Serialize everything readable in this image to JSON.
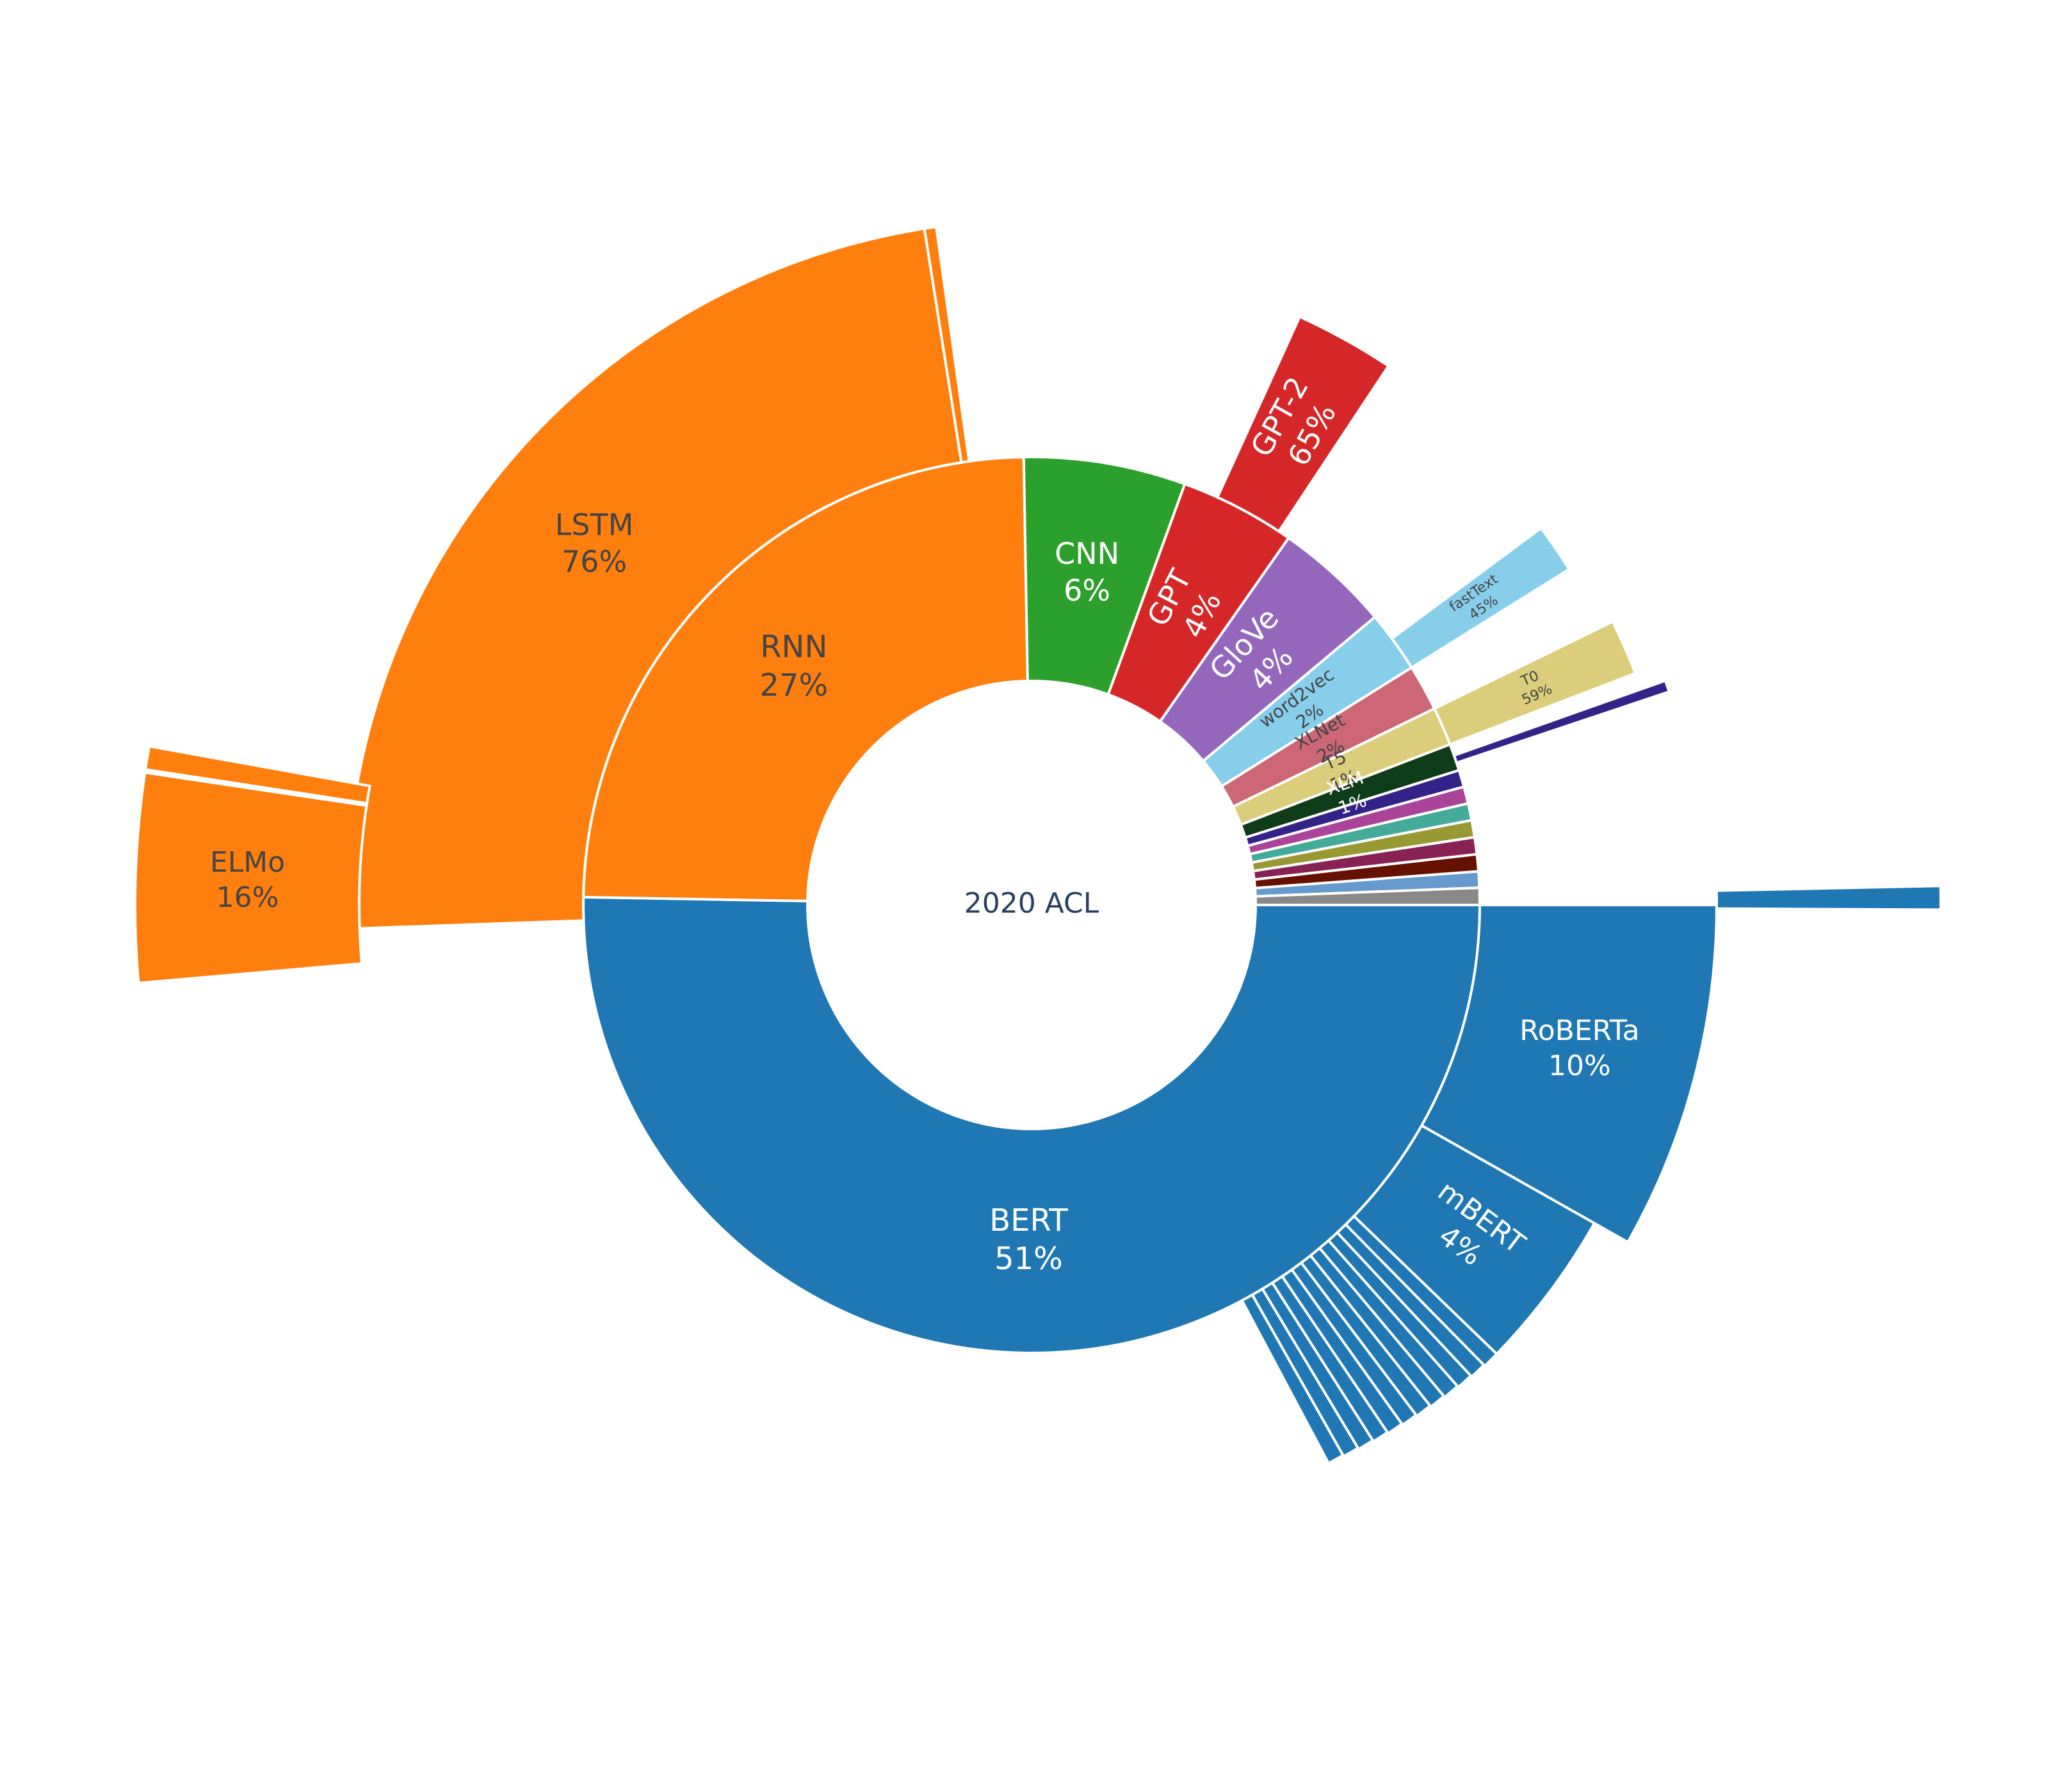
{
  "chart_data": {
    "type": "sunburst",
    "center_label": "2020 ACL",
    "rings": [
      {
        "ring": 1,
        "segments": [
          {
            "label": "BERT",
            "percent": "51%",
            "value": 51,
            "color": "#1f77b4",
            "text_color": "#ffffff",
            "show_label": true
          },
          {
            "label": "RNN",
            "percent": "27%",
            "value": 27,
            "color": "#ff7f0e",
            "text_color": "#444444",
            "show_label": true
          },
          {
            "label": "CNN",
            "percent": "6%",
            "value": 6,
            "color": "#2ca02c",
            "text_color": "#ffffff",
            "show_label": true
          },
          {
            "label": "GPT",
            "percent": "4%",
            "value": 4,
            "color": "#d62728",
            "text_color": "#ffffff",
            "show_label": true,
            "rotated": true
          },
          {
            "label": "GloVe",
            "percent": "4%",
            "value": 4,
            "color": "#9467bd",
            "text_color": "#ffffff",
            "show_label": true,
            "rotated": true
          },
          {
            "label": "word2vec",
            "percent": "2%",
            "value": 2,
            "color": "#87ceeb",
            "text_color": "#444444",
            "show_label": true,
            "rotated": true
          },
          {
            "label": "XLNet",
            "percent": "2%",
            "value": 2,
            "color": "#cd6675",
            "text_color": "#444444",
            "show_label": true,
            "rotated": true
          },
          {
            "label": "T5",
            "percent": "1%",
            "value": 1.4,
            "color": "#dccd7a",
            "text_color": "#444444",
            "show_label": true,
            "rotated": true
          },
          {
            "label": "XLM",
            "percent": "1%",
            "value": 1.0,
            "color": "#0f3d1a",
            "text_color": "#ffffff",
            "show_label": true,
            "rotated": true
          },
          {
            "label": "",
            "percent": "",
            "value": 0.5,
            "color": "#332288",
            "text_color": "#ffffff",
            "show_label": false
          },
          {
            "label": "",
            "percent": "",
            "value": 0.4,
            "color": "#aa4499",
            "text_color": "#ffffff",
            "show_label": false
          },
          {
            "label": "",
            "percent": "",
            "value": 0.4,
            "color": "#44aa99",
            "text_color": "#ffffff",
            "show_label": false
          },
          {
            "label": "",
            "percent": "",
            "value": 0.3,
            "color": "#999933",
            "text_color": "#ffffff",
            "show_label": false
          },
          {
            "label": "",
            "percent": "",
            "value": 0.3,
            "color": "#882255",
            "text_color": "#ffffff",
            "show_label": false
          },
          {
            "label": "",
            "percent": "",
            "value": 0.3,
            "color": "#661100",
            "text_color": "#ffffff",
            "show_label": false
          },
          {
            "label": "",
            "percent": "",
            "value": 0.2,
            "color": "#6699cc",
            "text_color": "#ffffff",
            "show_label": false
          },
          {
            "label": "",
            "percent": "",
            "value": 0.2,
            "color": "#888888",
            "text_color": "#ffffff",
            "show_label": false
          }
        ]
      },
      {
        "ring": 2,
        "segments": [
          {
            "parent": "BERT",
            "label": "RoBERTa",
            "percent": "10%",
            "value": 10,
            "color": "#1f77b4",
            "text_color": "#ffffff",
            "show_label": true
          },
          {
            "parent": "BERT",
            "label": "mBERT",
            "percent": "4%",
            "value": 4,
            "color": "#1f77b4",
            "text_color": "#ffffff",
            "show_label": true,
            "rotated": true
          },
          {
            "parent": "BERT",
            "label": "",
            "percent": "",
            "value": 1,
            "color": "#1f77b4",
            "show_label": false
          },
          {
            "parent": "BERT",
            "label": "",
            "percent": "",
            "value": 1,
            "color": "#1f77b4",
            "show_label": false
          },
          {
            "parent": "BERT",
            "label": "",
            "percent": "",
            "value": 1,
            "color": "#1f77b4",
            "show_label": false
          },
          {
            "parent": "BERT",
            "label": "",
            "percent": "",
            "value": 0.8,
            "color": "#1f77b4",
            "show_label": false
          },
          {
            "parent": "BERT",
            "label": "",
            "percent": "",
            "value": 0.8,
            "color": "#1f77b4",
            "show_label": false
          },
          {
            "parent": "BERT",
            "label": "",
            "percent": "",
            "value": 0.6,
            "color": "#1f77b4",
            "show_label": false
          },
          {
            "parent": "BERT",
            "label": "",
            "percent": "",
            "value": 0.6,
            "color": "#1f77b4",
            "show_label": false
          },
          {
            "parent": "BERT",
            "label": "",
            "percent": "",
            "value": 0.5,
            "color": "#1f77b4",
            "show_label": false
          },
          {
            "parent": "BERT",
            "label": "",
            "percent": "",
            "value": 0.5,
            "color": "#1f77b4",
            "show_label": false
          },
          {
            "parent": "BERT",
            "label": "",
            "percent": "",
            "value": 0.4,
            "color": "#1f77b4",
            "show_label": false
          },
          {
            "parent": "BERT",
            "label": "",
            "percent": "",
            "value": 0.4,
            "color": "#1f77b4",
            "show_label": false
          },
          {
            "parent": "BERT",
            "label": "",
            "percent": "",
            "value": 0.3,
            "color": "#1f77b4",
            "show_label": false
          },
          {
            "parent": "RNN",
            "label": "LSTM",
            "percent": "76%",
            "value": 76,
            "color": "#ff7f0e",
            "text_color": "#444444",
            "show_label": true
          },
          {
            "parent": "RNN",
            "label": "",
            "percent": "",
            "value": 0.8,
            "color": "#ff7f0e",
            "show_label": false
          },
          {
            "parent": "GPT",
            "label": "GPT-2",
            "percent": "65%",
            "value": 65,
            "color": "#d62728",
            "text_color": "#ffffff",
            "show_label": true,
            "rotated": true
          },
          {
            "parent": "word2vec",
            "label": "fastText",
            "percent": "45%",
            "value": 45,
            "color": "#87ceeb",
            "text_color": "#444444",
            "show_label": true,
            "rotated": true
          },
          {
            "parent": "T5",
            "label": "T0",
            "percent": "59%",
            "value": 59,
            "color": "#dccd7a",
            "text_color": "#444444",
            "show_label": true,
            "rotated": true
          },
          {
            "parent": "XLM",
            "label": "",
            "percent": "",
            "value": 20,
            "color": "#332288",
            "show_label": false
          }
        ]
      },
      {
        "ring": 3,
        "segments": [
          {
            "parent": "RoBERTa",
            "label": "",
            "percent": "",
            "value": 2,
            "color": "#1f77b4",
            "show_label": false
          },
          {
            "parent": "LSTM",
            "label": "ELMo",
            "percent": "16%",
            "value": 16,
            "color": "#ff7f0e",
            "text_color": "#444444",
            "show_label": true
          },
          {
            "parent": "LSTM",
            "label": "",
            "percent": "",
            "value": 1.5,
            "color": "#ff7f0e",
            "show_label": false
          }
        ]
      }
    ]
  }
}
